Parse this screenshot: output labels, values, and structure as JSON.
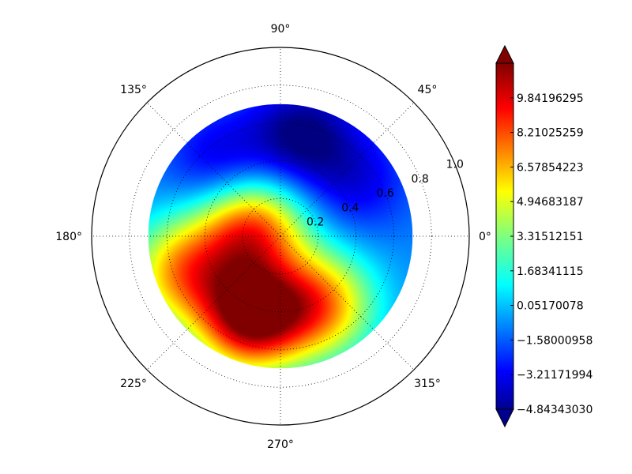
{
  "chart_data": {
    "type": "heatmap",
    "projection": "polar",
    "theta_ticks": [
      "0°",
      "45°",
      "90°",
      "135°",
      "180°",
      "225°",
      "270°",
      "315°"
    ],
    "r_ticks": [
      "0.2",
      "0.4",
      "0.6",
      "0.8",
      "1.0"
    ],
    "rlim": [
      0,
      1.0
    ],
    "data_extent_r": 0.7,
    "grid": true,
    "colormap": "jet",
    "colorbar": {
      "ticks": [
        "9.84196295",
        "8.21025259",
        "6.57854223",
        "4.94683187",
        "3.31512151",
        "1.68341115",
        "0.05170078",
        "−1.58000958",
        "−3.21171994",
        "−4.84343030"
      ],
      "range": [
        -4.8434303,
        11.4736733
      ],
      "extend": "both"
    },
    "features": [
      {
        "name": "high",
        "theta_deg": 250,
        "r": 0.46,
        "value": 11.2
      },
      {
        "name": "high",
        "theta_deg": 200,
        "r": 0.55,
        "value": 6.5
      },
      {
        "name": "high",
        "theta_deg": 300,
        "r": 0.42,
        "value": 7.0
      },
      {
        "name": "high",
        "theta_deg": 168,
        "r": 0.16,
        "value": 8.2
      },
      {
        "name": "low",
        "theta_deg": 78,
        "r": 0.55,
        "value": -4.8
      },
      {
        "name": "low",
        "theta_deg": 130,
        "r": 0.5,
        "value": -3.6
      },
      {
        "name": "low",
        "theta_deg": 35,
        "r": 0.5,
        "value": -3.0
      }
    ]
  }
}
